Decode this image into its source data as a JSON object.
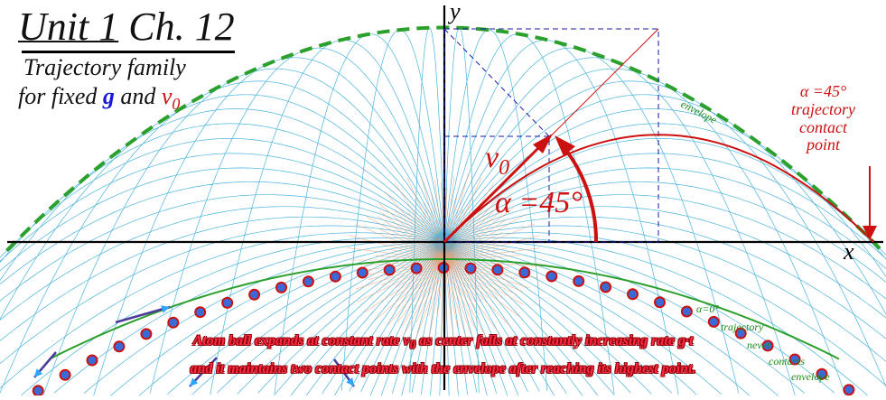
{
  "title": {
    "unit": "Unit 1",
    "chapter": "Ch. 12"
  },
  "subtitle": {
    "line1": "Trajectory family",
    "line2_prefix": "for fixed",
    "g": "g",
    "and": "and",
    "v": "v",
    "v_sub": "0"
  },
  "axes": {
    "x": "x",
    "y": "y"
  },
  "vector": {
    "v": "v",
    "sub": "0"
  },
  "angle_label": "α =45°",
  "envelope_label": "envelope",
  "right_annotation": {
    "line1": "α =45°",
    "line2": "trajectory",
    "line3": "contact",
    "line4": "point"
  },
  "zero_note": {
    "line1": "α=0°",
    "line2": "trajectory",
    "line3": "never",
    "line4": "contacts",
    "line5": "envelope"
  },
  "caption": {
    "line1_a": "Atom ball expands at constant rate v",
    "line1_sub": "0",
    "line1_b": " as center falls at constantly increasing rate g·t",
    "line2": "and it maintains two contact points with the envelope after reaching its highest point."
  },
  "colors": {
    "trajectory": "#2aa6d6",
    "envelope": "#2ca02c",
    "accent": "#cc1111",
    "axes": "#000000",
    "dots": "#3a6ad8",
    "burst": "#f4915e"
  }
}
